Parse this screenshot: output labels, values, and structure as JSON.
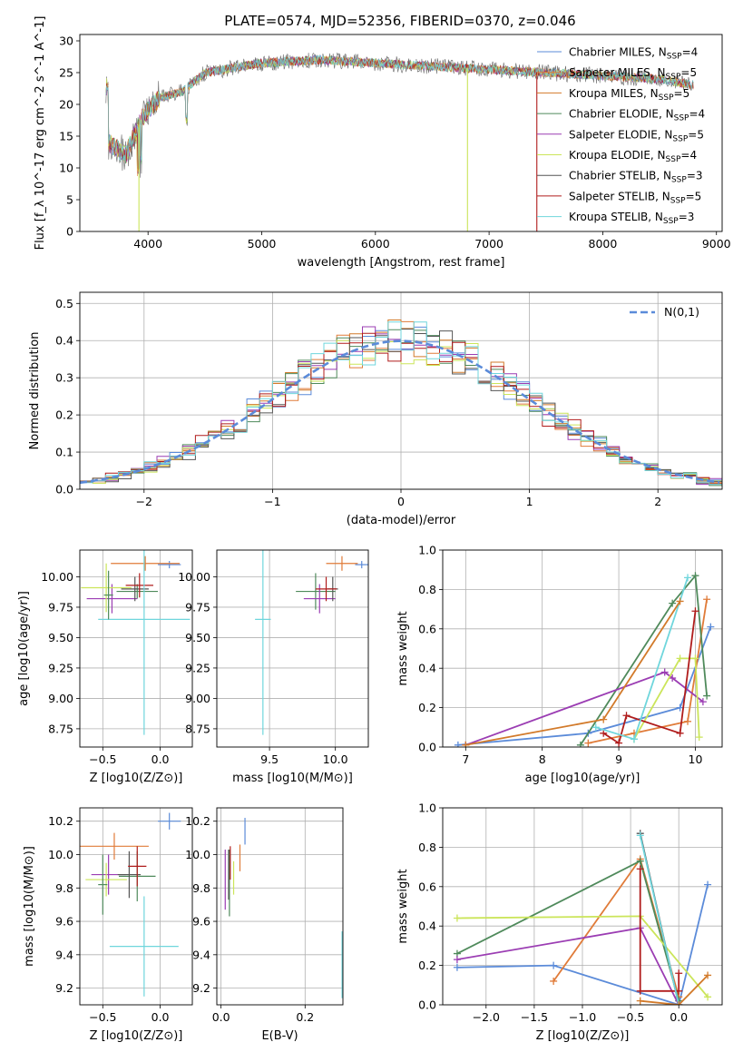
{
  "figure": {
    "title": "PLATE=0574, MJD=52356, FIBERID=0370, z=0.046"
  },
  "series_styles": [
    {
      "name": "Chabrier MILES",
      "nssp": 4,
      "color": "#5b8bd9"
    },
    {
      "name": "Salpeter MILES",
      "nssp": 5,
      "color": "#e07b39"
    },
    {
      "name": "Kroupa MILES",
      "nssp": 5,
      "color": "#d27a2a"
    },
    {
      "name": "Chabrier ELODIE",
      "nssp": 4,
      "color": "#4f8a5b"
    },
    {
      "name": "Salpeter ELODIE",
      "nssp": 5,
      "color": "#9b3db3"
    },
    {
      "name": "Kroupa ELODIE",
      "nssp": 4,
      "color": "#cbe55a"
    },
    {
      "name": "Chabrier STELIB",
      "nssp": 3,
      "color": "#555555"
    },
    {
      "name": "Salpeter STELIB",
      "nssp": 5,
      "color": "#b01c1c"
    },
    {
      "name": "Kroupa STELIB",
      "nssp": 3,
      "color": "#6fd6dc"
    }
  ],
  "chart_data": [
    {
      "id": "spectrum",
      "type": "line",
      "xlabel": "wavelength [Angstrom, rest frame]",
      "ylabel": "Flux [f_λ 10^-17 erg cm^-2 s^-1 A^-1]",
      "xlim": [
        3400,
        9050
      ],
      "ylim": [
        0,
        31
      ],
      "xticks": [
        4000,
        5000,
        6000,
        7000,
        8000,
        9000
      ],
      "yticks": [
        0,
        5,
        10,
        15,
        20,
        25,
        30
      ],
      "legend_position": "top-right",
      "series_summary": [
        {
          "x": 3650,
          "y": 14
        },
        {
          "x": 3800,
          "y": 12
        },
        {
          "x": 3950,
          "y": 18
        },
        {
          "x": 4100,
          "y": 21
        },
        {
          "x": 4300,
          "y": 22
        },
        {
          "x": 4500,
          "y": 25
        },
        {
          "x": 5000,
          "y": 26.5
        },
        {
          "x": 5500,
          "y": 27
        },
        {
          "x": 6000,
          "y": 26.5
        },
        {
          "x": 6500,
          "y": 26
        },
        {
          "x": 7000,
          "y": 25.5
        },
        {
          "x": 7500,
          "y": 25
        },
        {
          "x": 8000,
          "y": 24.5
        },
        {
          "x": 8500,
          "y": 24
        },
        {
          "x": 8800,
          "y": 23
        }
      ],
      "dropouts": [
        {
          "x": 3920,
          "color_index": 5
        },
        {
          "x": 6810,
          "color_index": 5
        },
        {
          "x": 7420,
          "color_index": 7
        }
      ]
    },
    {
      "id": "residuals",
      "type": "step",
      "xlabel": "(data-model)/error",
      "ylabel": "Normed distribution",
      "xlim": [
        -2.5,
        2.5
      ],
      "ylim": [
        0,
        0.53
      ],
      "xticks": [
        -2,
        -1,
        0,
        1,
        2
      ],
      "yticks": [
        0.0,
        0.1,
        0.2,
        0.3,
        0.4,
        0.5
      ],
      "grid": true,
      "legend": "N(0,1)",
      "legend_position": "top-right",
      "gaussian": {
        "mean": 0,
        "sigma": 1
      }
    },
    {
      "id": "age_vs_Z",
      "type": "errorbar",
      "xlabel": "Z [log10(Z/Z⊙)]",
      "ylabel": "age [log10(age/yr)]",
      "xlim": [
        -0.7,
        0.28
      ],
      "ylim": [
        8.6,
        10.22
      ],
      "xticks": [
        -0.5,
        0.0
      ],
      "yticks": [
        8.75,
        9.0,
        9.25,
        9.5,
        9.75,
        10.0
      ],
      "grid": true,
      "points": [
        {
          "x": 0.08,
          "y": 10.1,
          "xerr": 0.1,
          "yerr": 0.03,
          "color_index": 0
        },
        {
          "x": -0.13,
          "y": 10.11,
          "xerr": 0.3,
          "yerr": 0.06,
          "color_index": 1
        },
        {
          "x": -0.2,
          "y": 9.88,
          "xerr": 0.18,
          "yerr": 0.06,
          "color_index": 3
        },
        {
          "x": -0.42,
          "y": 9.82,
          "xerr": 0.22,
          "yerr": 0.12,
          "color_index": 4
        },
        {
          "x": -0.47,
          "y": 9.91,
          "xerr": 0.22,
          "yerr": 0.2,
          "color_index": 5
        },
        {
          "x": -0.22,
          "y": 9.9,
          "xerr": 0.12,
          "yerr": 0.1,
          "color_index": 6
        },
        {
          "x": -0.18,
          "y": 9.93,
          "xerr": 0.12,
          "yerr": 0.1,
          "color_index": 7
        },
        {
          "x": -0.14,
          "y": 9.65,
          "xerr": 0.4,
          "yerr": 0.95,
          "color_index": 8
        },
        {
          "x": -0.45,
          "y": 9.85,
          "xerr": 0.04,
          "yerr": 0.2,
          "color_index": 3
        }
      ]
    },
    {
      "id": "age_vs_mass",
      "type": "errorbar",
      "xlabel": "mass [log10(M/M⊙)]",
      "ylabel": "",
      "xlim": [
        9.1,
        10.25
      ],
      "ylim": [
        8.6,
        10.22
      ],
      "xticks": [
        9.5,
        10.0
      ],
      "yticks": [
        8.75,
        9.0,
        9.25,
        9.5,
        9.75,
        10.0
      ],
      "grid": true,
      "points": [
        {
          "x": 10.2,
          "y": 10.1,
          "xerr": 0.05,
          "yerr": 0.03,
          "color_index": 0
        },
        {
          "x": 10.05,
          "y": 10.11,
          "xerr": 0.12,
          "yerr": 0.06,
          "color_index": 1
        },
        {
          "x": 9.85,
          "y": 9.88,
          "xerr": 0.15,
          "yerr": 0.15,
          "color_index": 3
        },
        {
          "x": 9.88,
          "y": 9.82,
          "xerr": 0.12,
          "yerr": 0.12,
          "color_index": 4
        },
        {
          "x": 9.98,
          "y": 9.9,
          "xerr": 0.04,
          "yerr": 0.1,
          "color_index": 6
        },
        {
          "x": 9.93,
          "y": 9.9,
          "xerr": 0.08,
          "yerr": 0.1,
          "color_index": 7
        },
        {
          "x": 9.45,
          "y": 9.65,
          "xerr": 0.06,
          "yerr": 0.95,
          "color_index": 8
        }
      ]
    },
    {
      "id": "mass_weight_vs_age",
      "type": "line",
      "xlabel": "age [log10(age/yr)]",
      "ylabel": "mass weight",
      "xlim": [
        6.7,
        10.35
      ],
      "ylim": [
        0,
        1.0
      ],
      "xticks": [
        7,
        8,
        9,
        10
      ],
      "yticks": [
        0.0,
        0.2,
        0.4,
        0.6,
        0.8,
        1.0
      ],
      "grid": true,
      "series": [
        {
          "color_index": 0,
          "x": [
            6.9,
            8.6,
            9.8,
            10.2
          ],
          "y": [
            0.01,
            0.07,
            0.2,
            0.61
          ]
        },
        {
          "color_index": 1,
          "x": [
            8.6,
            9.2,
            9.9,
            10.15
          ],
          "y": [
            0.02,
            0.07,
            0.13,
            0.75
          ]
        },
        {
          "color_index": 3,
          "x": [
            8.5,
            9.7,
            10.0,
            10.15
          ],
          "y": [
            0.01,
            0.73,
            0.87,
            0.26
          ]
        },
        {
          "color_index": 4,
          "x": [
            7.0,
            9.6,
            9.7,
            10.1
          ],
          "y": [
            0.01,
            0.38,
            0.35,
            0.23
          ]
        },
        {
          "color_index": 5,
          "x": [
            9.2,
            9.8,
            10.0,
            10.05
          ],
          "y": [
            0.04,
            0.45,
            0.45,
            0.05
          ]
        },
        {
          "color_index": 7,
          "x": [
            8.8,
            9.0,
            9.1,
            9.8,
            10.0
          ],
          "y": [
            0.07,
            0.02,
            0.16,
            0.07,
            0.69
          ]
        },
        {
          "color_index": 8,
          "x": [
            8.7,
            9.2,
            9.9
          ],
          "y": [
            0.1,
            0.04,
            0.86
          ]
        },
        {
          "color_index": 2,
          "x": [
            7.0,
            8.8,
            9.8
          ],
          "y": [
            0.01,
            0.14,
            0.74
          ]
        }
      ]
    },
    {
      "id": "mass_vs_Z",
      "type": "errorbar",
      "xlabel": "Z [log10(Z/Z⊙)]",
      "ylabel": "mass [log10(M/M⊙)]",
      "xlim": [
        -0.7,
        0.28
      ],
      "ylim": [
        9.1,
        10.28
      ],
      "xticks": [
        -0.5,
        0.0
      ],
      "yticks": [
        9.2,
        9.4,
        9.6,
        9.8,
        10.0,
        10.2
      ],
      "grid": true,
      "points": [
        {
          "x": 0.08,
          "y": 10.2,
          "xerr": 0.1,
          "yerr": 0.05,
          "color_index": 0
        },
        {
          "x": -0.4,
          "y": 10.05,
          "xerr": 0.3,
          "yerr": 0.08,
          "color_index": 1
        },
        {
          "x": -0.2,
          "y": 9.87,
          "xerr": 0.16,
          "yerr": 0.15,
          "color_index": 3
        },
        {
          "x": -0.45,
          "y": 9.88,
          "xerr": 0.15,
          "yerr": 0.12,
          "color_index": 4
        },
        {
          "x": -0.47,
          "y": 9.85,
          "xerr": 0.18,
          "yerr": 0.1,
          "color_index": 5
        },
        {
          "x": -0.27,
          "y": 9.88,
          "xerr": 0.1,
          "yerr": 0.14,
          "color_index": 6
        },
        {
          "x": -0.2,
          "y": 9.93,
          "xerr": 0.08,
          "yerr": 0.12,
          "color_index": 7
        },
        {
          "x": -0.14,
          "y": 9.45,
          "xerr": 0.3,
          "yerr": 0.3,
          "color_index": 8
        },
        {
          "x": -0.5,
          "y": 9.82,
          "xerr": 0.04,
          "yerr": 0.18,
          "color_index": 3
        }
      ]
    },
    {
      "id": "mass_vs_ebv",
      "type": "errorbar",
      "xlabel": "E(B-V)",
      "ylabel": "",
      "xlim": [
        -0.01,
        0.29
      ],
      "ylim": [
        9.1,
        10.28
      ],
      "xticks": [
        0.0,
        0.2
      ],
      "yticks": [
        9.2,
        9.4,
        9.6,
        9.8,
        10.0,
        10.2
      ],
      "grid": true,
      "points": [
        {
          "x": 0.057,
          "y": 10.14,
          "yerr": 0.08,
          "color_index": 0
        },
        {
          "x": 0.045,
          "y": 9.98,
          "yerr": 0.08,
          "color_index": 1
        },
        {
          "x": 0.02,
          "y": 9.83,
          "yerr": 0.2,
          "color_index": 3
        },
        {
          "x": 0.01,
          "y": 9.85,
          "yerr": 0.18,
          "color_index": 4
        },
        {
          "x": 0.03,
          "y": 9.86,
          "yerr": 0.1,
          "color_index": 5
        },
        {
          "x": 0.018,
          "y": 9.88,
          "yerr": 0.15,
          "color_index": 6
        },
        {
          "x": 0.022,
          "y": 9.95,
          "yerr": 0.1,
          "color_index": 7
        },
        {
          "x": 0.288,
          "y": 9.34,
          "yerr": 0.2,
          "color_index": 8
        }
      ]
    },
    {
      "id": "mass_weight_vs_Z",
      "type": "line",
      "xlabel": "Z [log10(Z/Z⊙)]",
      "ylabel": "mass weight",
      "xlim": [
        -2.45,
        0.45
      ],
      "ylim": [
        0,
        1.0
      ],
      "xticks": [
        -2.0,
        -1.5,
        -1.0,
        -0.5,
        0.0
      ],
      "yticks": [
        0.0,
        0.2,
        0.4,
        0.6,
        0.8,
        1.0
      ],
      "grid": true,
      "series": [
        {
          "color_index": 0,
          "x": [
            -2.3,
            -1.3,
            0.0,
            0.3
          ],
          "y": [
            0.19,
            0.2,
            0.0,
            0.61
          ]
        },
        {
          "color_index": 1,
          "x": [
            -1.3,
            -0.4,
            0.0
          ],
          "y": [
            0.12,
            0.74,
            0.04
          ]
        },
        {
          "color_index": 3,
          "x": [
            -2.3,
            -0.4,
            0.0
          ],
          "y": [
            0.26,
            0.73,
            0.02
          ]
        },
        {
          "color_index": 4,
          "x": [
            -2.3,
            -0.4,
            0.0
          ],
          "y": [
            0.23,
            0.39,
            0.0
          ]
        },
        {
          "color_index": 5,
          "x": [
            -2.3,
            -0.4,
            0.3
          ],
          "y": [
            0.44,
            0.45,
            0.04
          ]
        },
        {
          "color_index": 6,
          "x": [
            -0.4,
            0.0
          ],
          "y": [
            0.87,
            0.0
          ]
        },
        {
          "color_index": 7,
          "x": [
            -0.4,
            -0.4,
            0.0,
            0.0
          ],
          "y": [
            0.69,
            0.07,
            0.07,
            0.16
          ]
        },
        {
          "color_index": 8,
          "x": [
            -0.4,
            0.0
          ],
          "y": [
            0.86,
            0.0
          ]
        },
        {
          "color_index": 2,
          "x": [
            -0.4,
            0.0,
            0.3
          ],
          "y": [
            0.02,
            0.0,
            0.15
          ]
        }
      ]
    }
  ]
}
